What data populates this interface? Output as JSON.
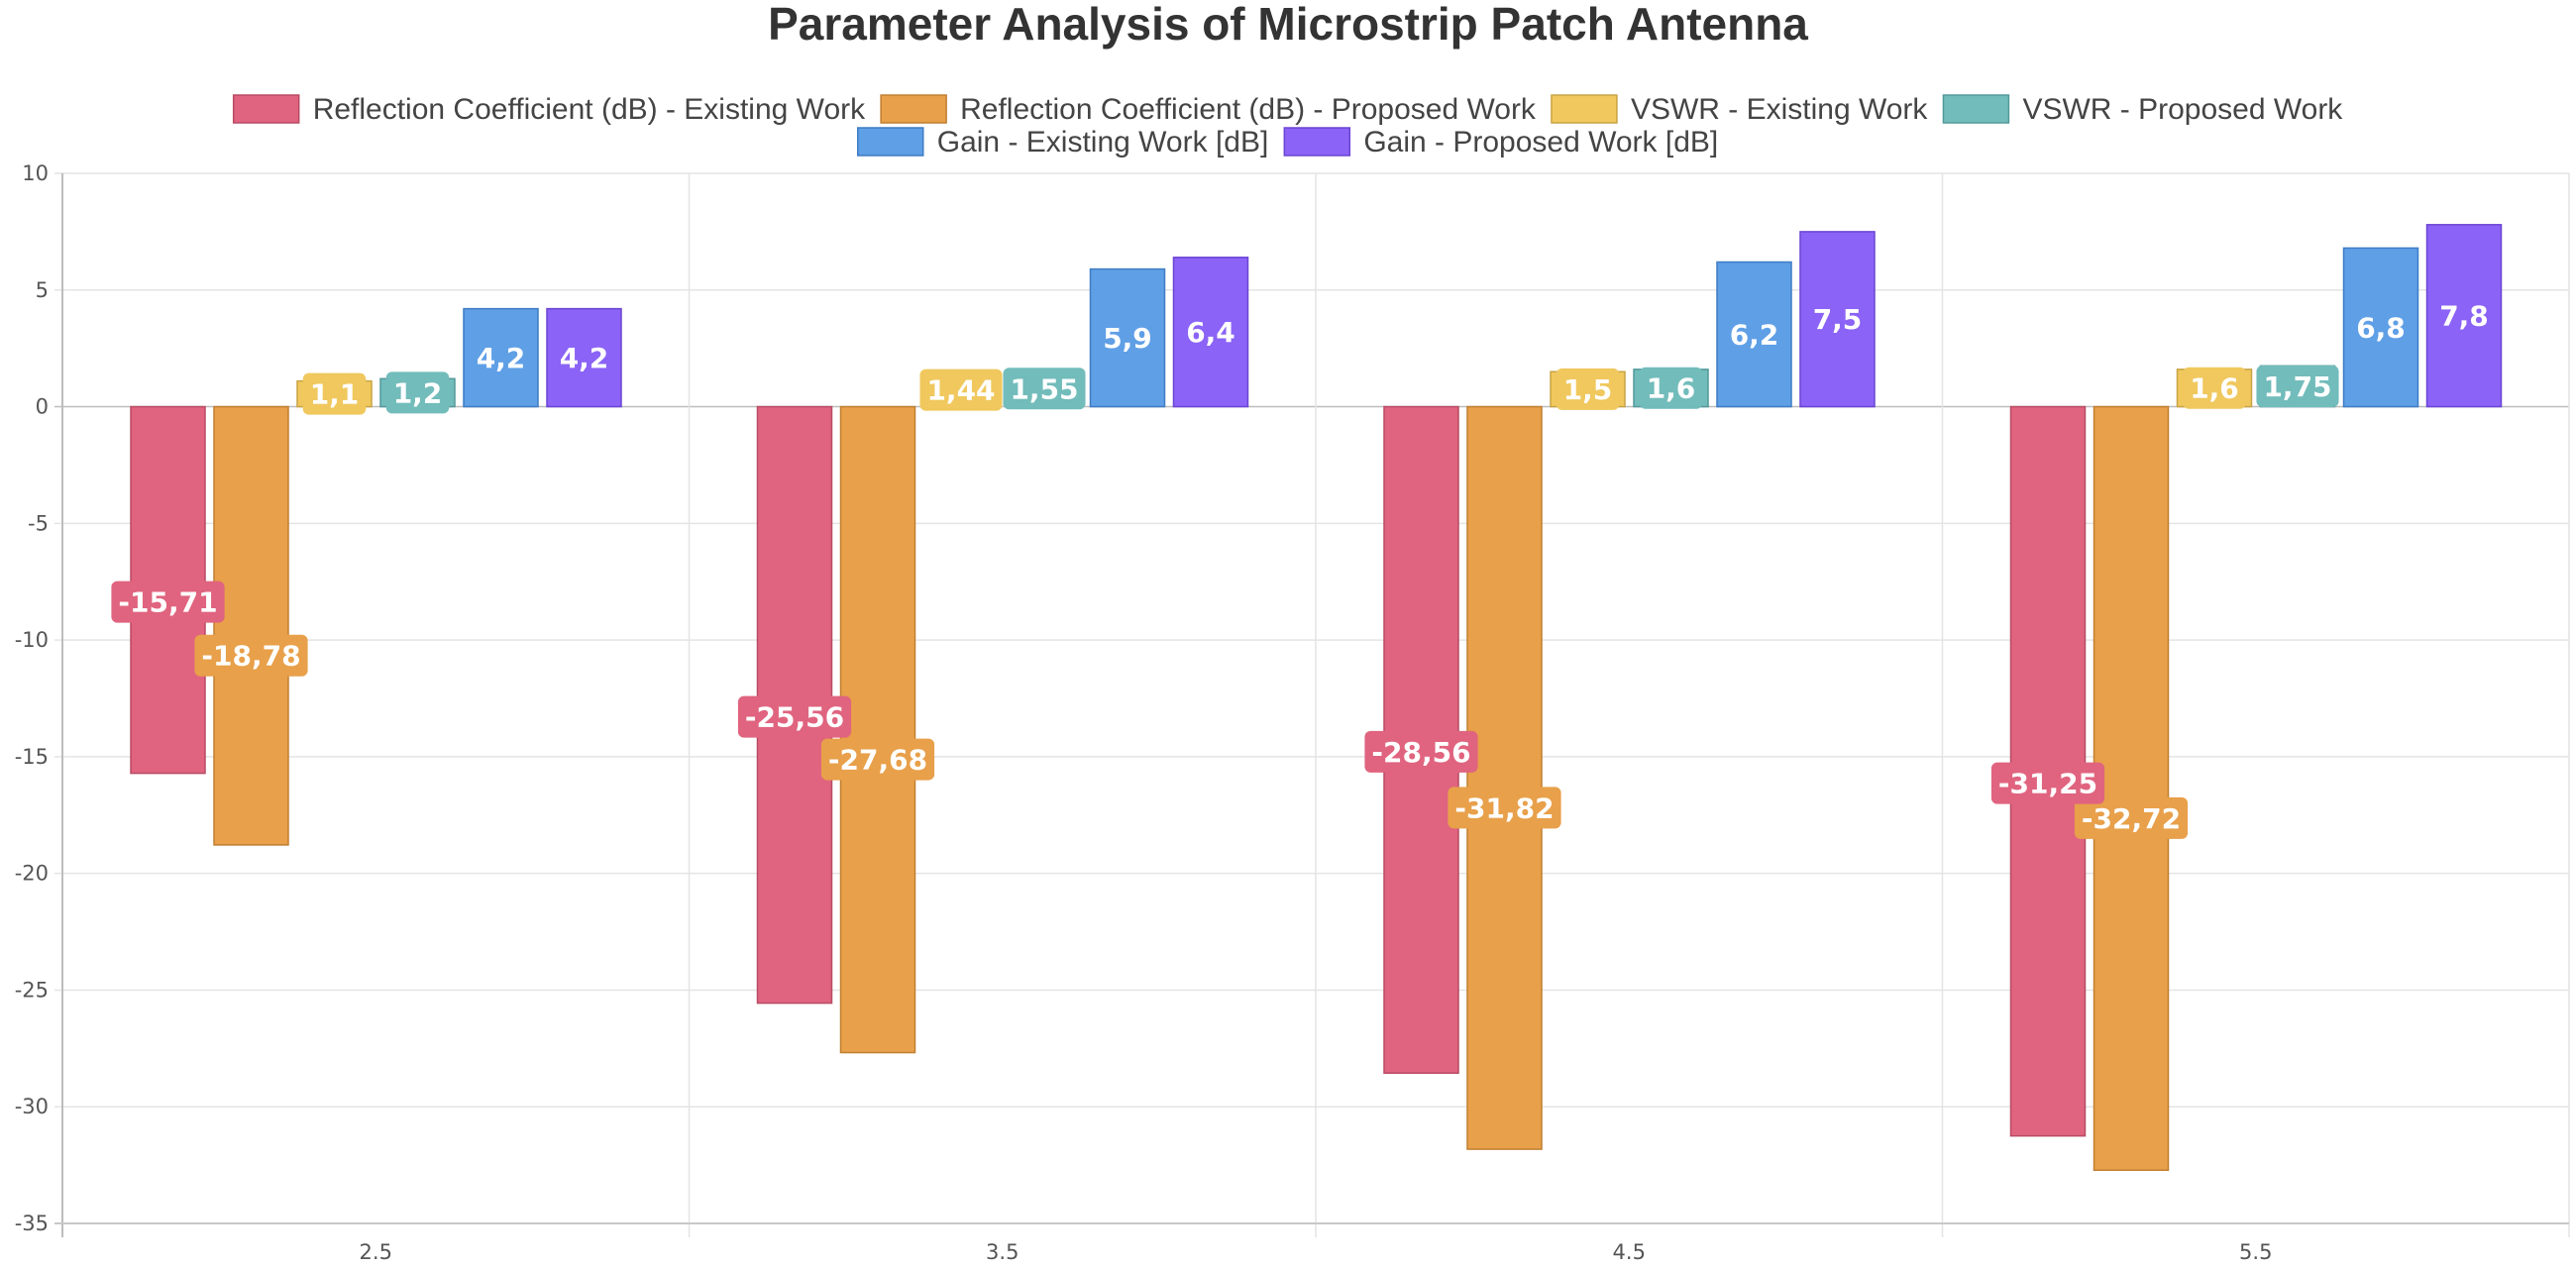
{
  "chart_data": {
    "type": "bar",
    "title": "Parameter Analysis of Microstrip Patch Antenna",
    "xlabel": "",
    "ylabel": "",
    "categories": [
      "2.5",
      "3.5",
      "4.5",
      "5.5"
    ],
    "ylim": [
      -35,
      10
    ],
    "yticks": [
      "10",
      "5",
      "0",
      "-5",
      "-10",
      "-15",
      "-20",
      "-25",
      "-30",
      "-35"
    ],
    "ytick_values": [
      10,
      5,
      0,
      -5,
      -10,
      -15,
      -20,
      -25,
      -30,
      -35
    ],
    "grid": true,
    "legend_position": "top",
    "series": [
      {
        "name": "Reflection Coefficient (dB) - Existing Work",
        "color": "#e0647f",
        "border": "#b84a63",
        "values": [
          -15.71,
          -25.56,
          -28.56,
          -31.25
        ],
        "labels": [
          "-15,71",
          "-25,56",
          "-28,56",
          "-31,25"
        ],
        "label_style": "badge"
      },
      {
        "name": "Reflection Coefficient (dB) - Proposed Work",
        "color": "#e8a04a",
        "border": "#c07f30",
        "values": [
          -18.78,
          -27.68,
          -31.82,
          -32.72
        ],
        "labels": [
          "-18,78",
          "-27,68",
          "-31,82",
          "-32,72"
        ],
        "label_style": "badge"
      },
      {
        "name": "VSWR - Existing Work",
        "color": "#f0c85e",
        "border": "#c9a444",
        "values": [
          1.1,
          1.44,
          1.5,
          1.6
        ],
        "labels": [
          "1,1",
          "1,44",
          "1,5",
          "1,6"
        ],
        "label_style": "badge"
      },
      {
        "name": "VSWR - Proposed Work",
        "color": "#72bcbb",
        "border": "#52999a",
        "values": [
          1.2,
          1.55,
          1.6,
          1.75
        ],
        "labels": [
          "1,2",
          "1,55",
          "1,6",
          "1,75"
        ],
        "label_style": "badge"
      },
      {
        "name": "Gain - Existing Work [dB]",
        "color": "#5f9fe6",
        "border": "#3f7cc4",
        "values": [
          4.2,
          5.9,
          6.2,
          6.8
        ],
        "labels": [
          "4,2",
          "5,9",
          "6,2",
          "6,8"
        ],
        "label_style": "plain"
      },
      {
        "name": "Gain - Proposed Work [dB]",
        "color": "#8b63f6",
        "border": "#6b45d4",
        "values": [
          4.2,
          6.4,
          7.5,
          7.8
        ],
        "labels": [
          "4,2",
          "6,4",
          "7,5",
          "7,8"
        ],
        "label_style": "plain"
      }
    ]
  }
}
